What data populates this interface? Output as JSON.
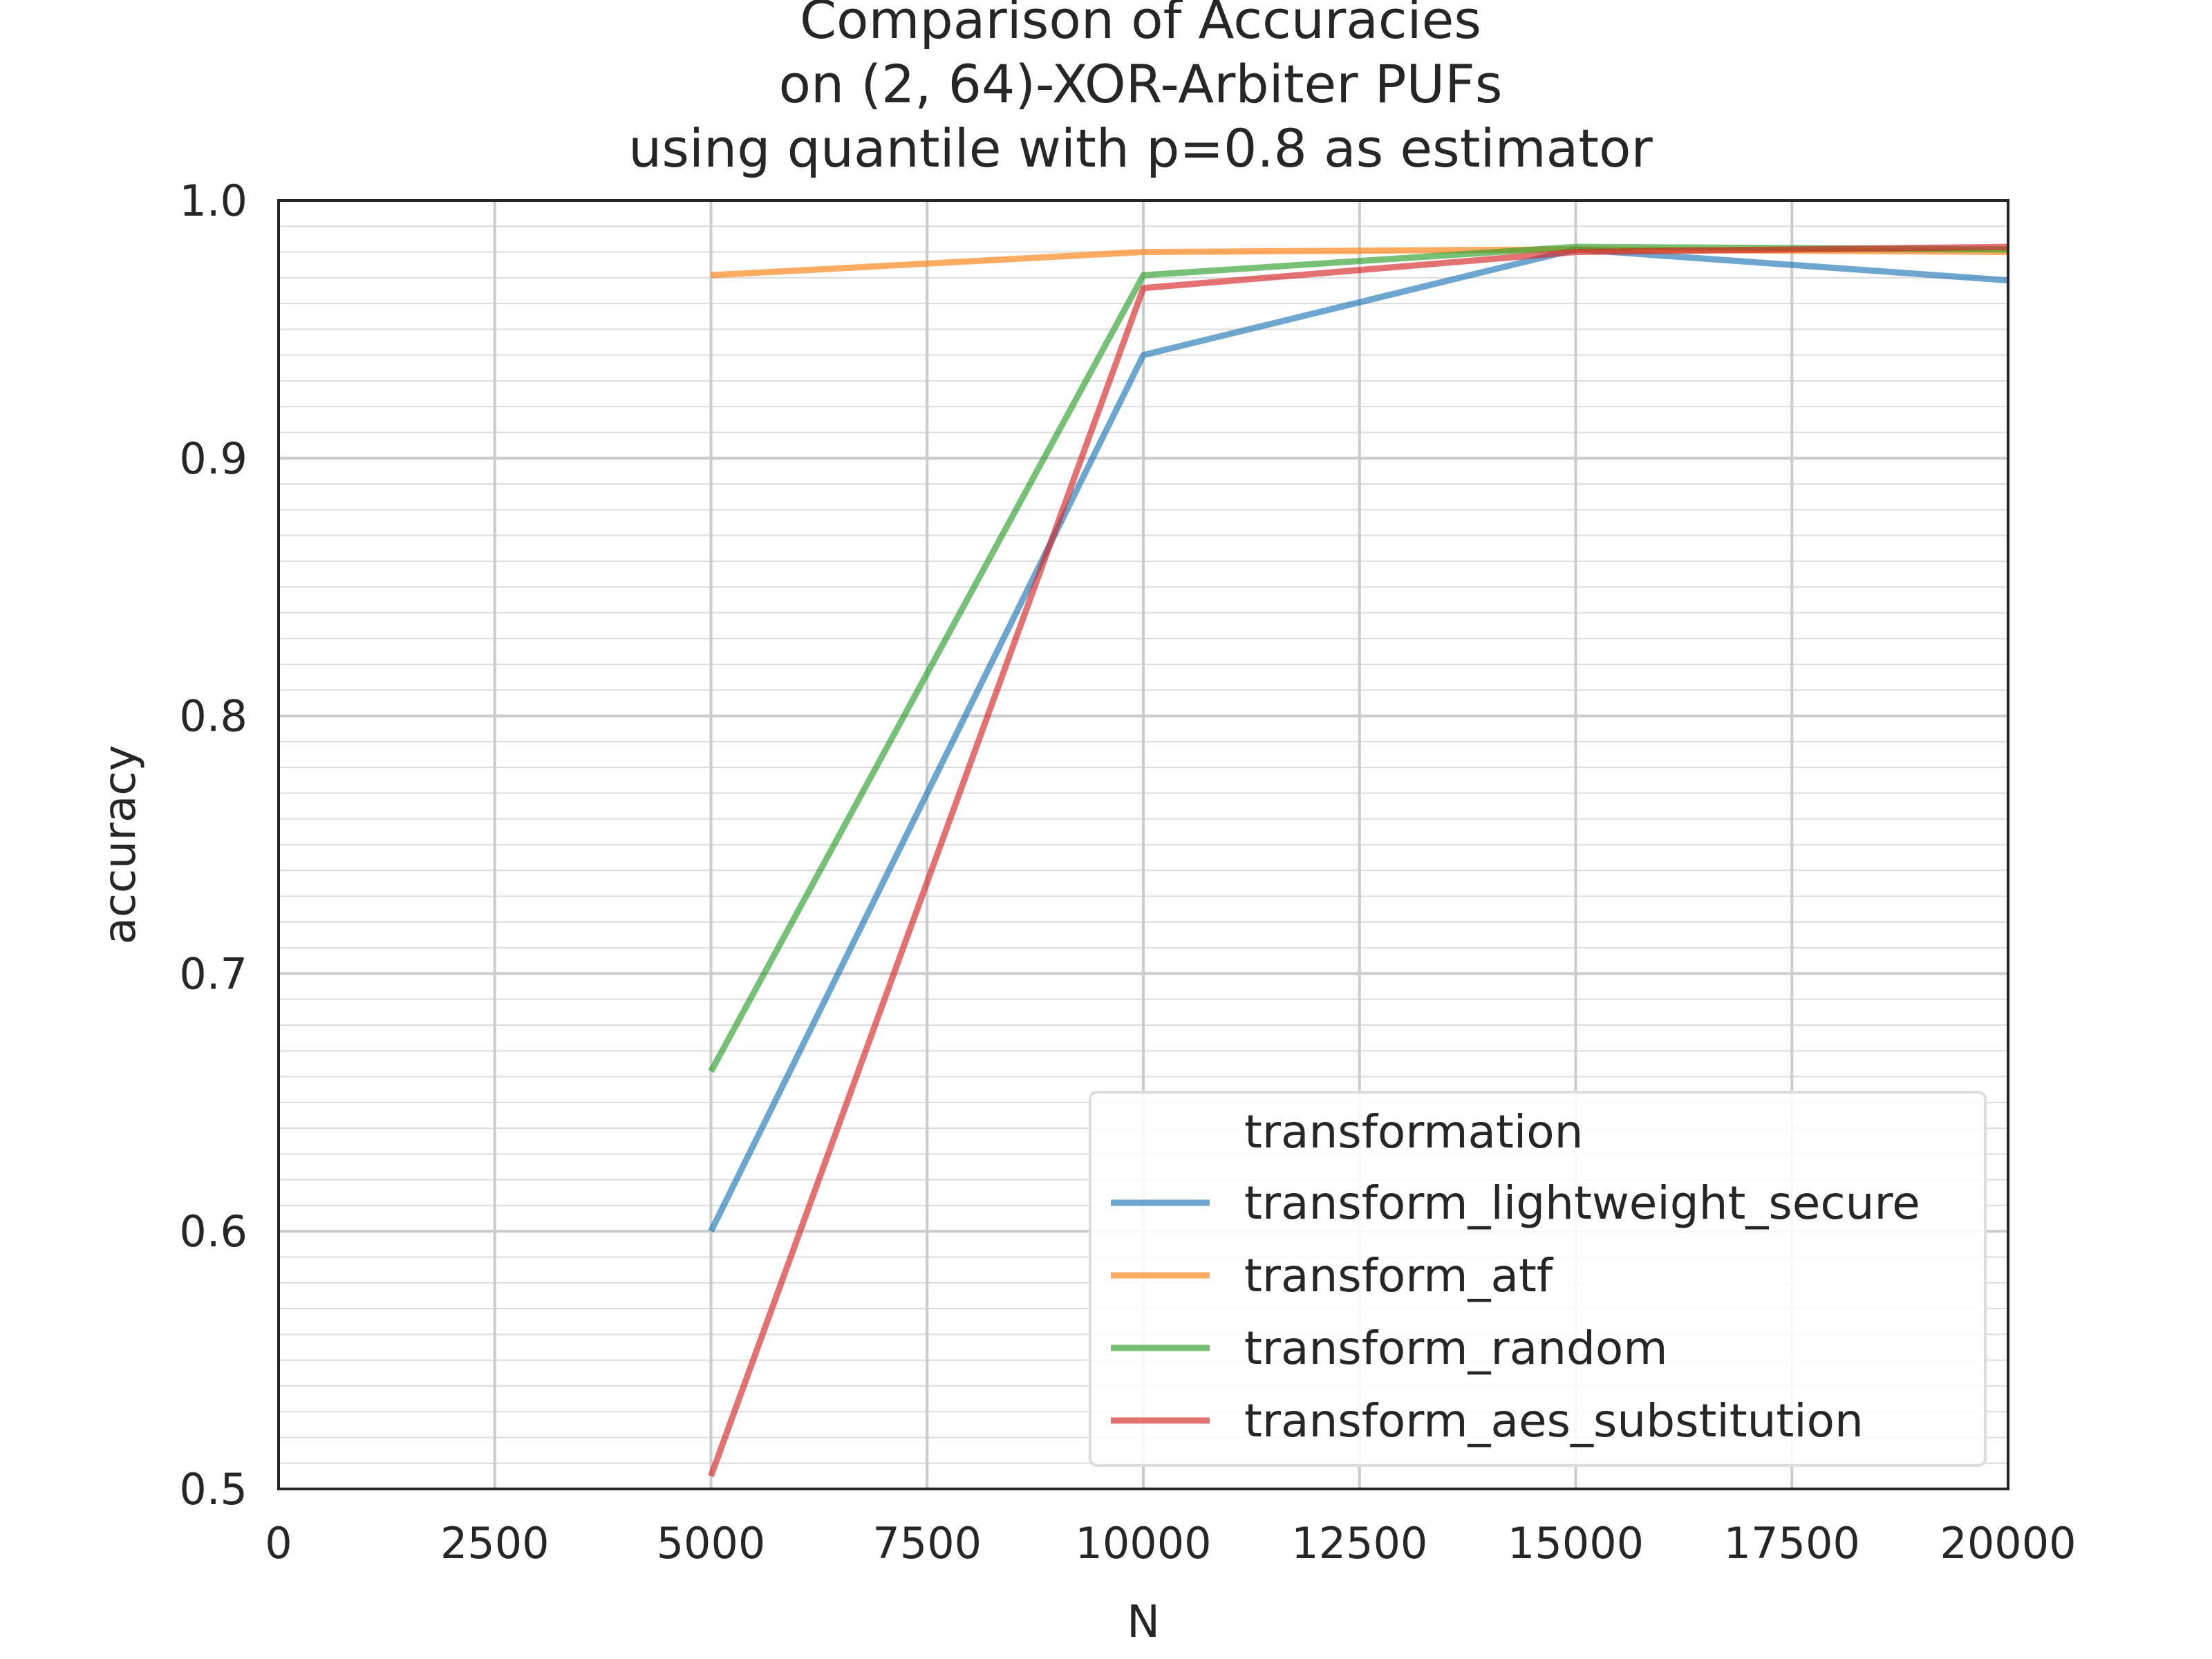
{
  "chart_data": {
    "type": "line",
    "title_lines": [
      "Comparison of Accuracies",
      "on (2, 64)-XOR-Arbiter PUFs",
      "using quantile with p=0.8 as estimator"
    ],
    "xlabel": "N",
    "ylabel": "accuracy",
    "xlim": [
      0,
      20000
    ],
    "ylim": [
      0.5,
      1.0
    ],
    "x_ticks": [
      "0",
      "2500",
      "5000",
      "7500",
      "10000",
      "12500",
      "15000",
      "17500",
      "20000"
    ],
    "y_ticks": [
      "0.5",
      "0.6",
      "0.7",
      "0.8",
      "0.9",
      "1.0"
    ],
    "grid": true,
    "x": [
      5000,
      10000,
      15000,
      20000
    ],
    "series": [
      {
        "name": "transform_lightweight_secure",
        "color": "#1f77b4",
        "values": [
          0.6,
          0.94,
          0.981,
          0.969
        ]
      },
      {
        "name": "transform_atf",
        "color": "#ff7f0e",
        "values": [
          0.971,
          0.98,
          0.981,
          0.98
        ]
      },
      {
        "name": "transform_random",
        "color": "#2ca02c",
        "values": [
          0.662,
          0.971,
          0.982,
          0.981
        ]
      },
      {
        "name": "transform_aes_substitution",
        "color": "#d62728",
        "values": [
          0.505,
          0.966,
          0.98,
          0.982
        ]
      }
    ],
    "legend": {
      "title": "transformation",
      "placement": "lower-right"
    }
  }
}
